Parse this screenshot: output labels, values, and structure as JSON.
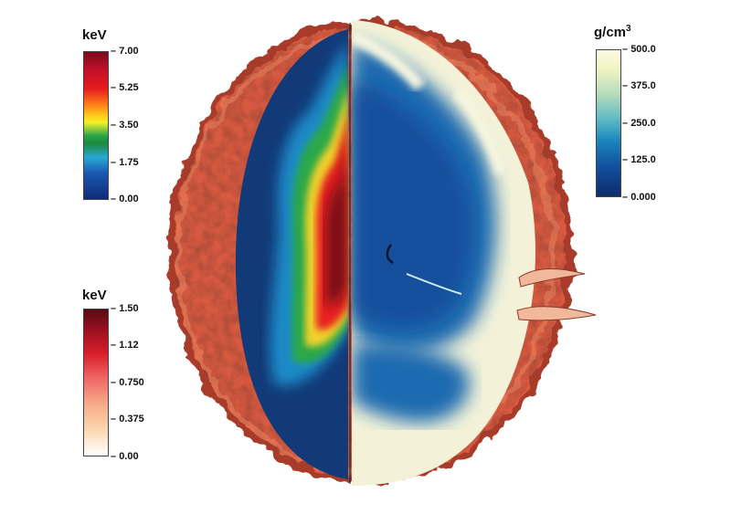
{
  "colorbars": {
    "temperature_full": {
      "unit": "keV",
      "ticks": [
        "7.00",
        "5.25",
        "3.50",
        "1.75",
        "0.00"
      ]
    },
    "temperature_shell": {
      "unit": "keV",
      "ticks": [
        "1.50",
        "1.12",
        "0.750",
        "0.375",
        "0.00"
      ]
    },
    "density": {
      "unit_base": "g/cm",
      "unit_exp": "3",
      "ticks": [
        "500.0",
        "375.0",
        "250.0",
        "125.0",
        "0.000"
      ]
    }
  }
}
